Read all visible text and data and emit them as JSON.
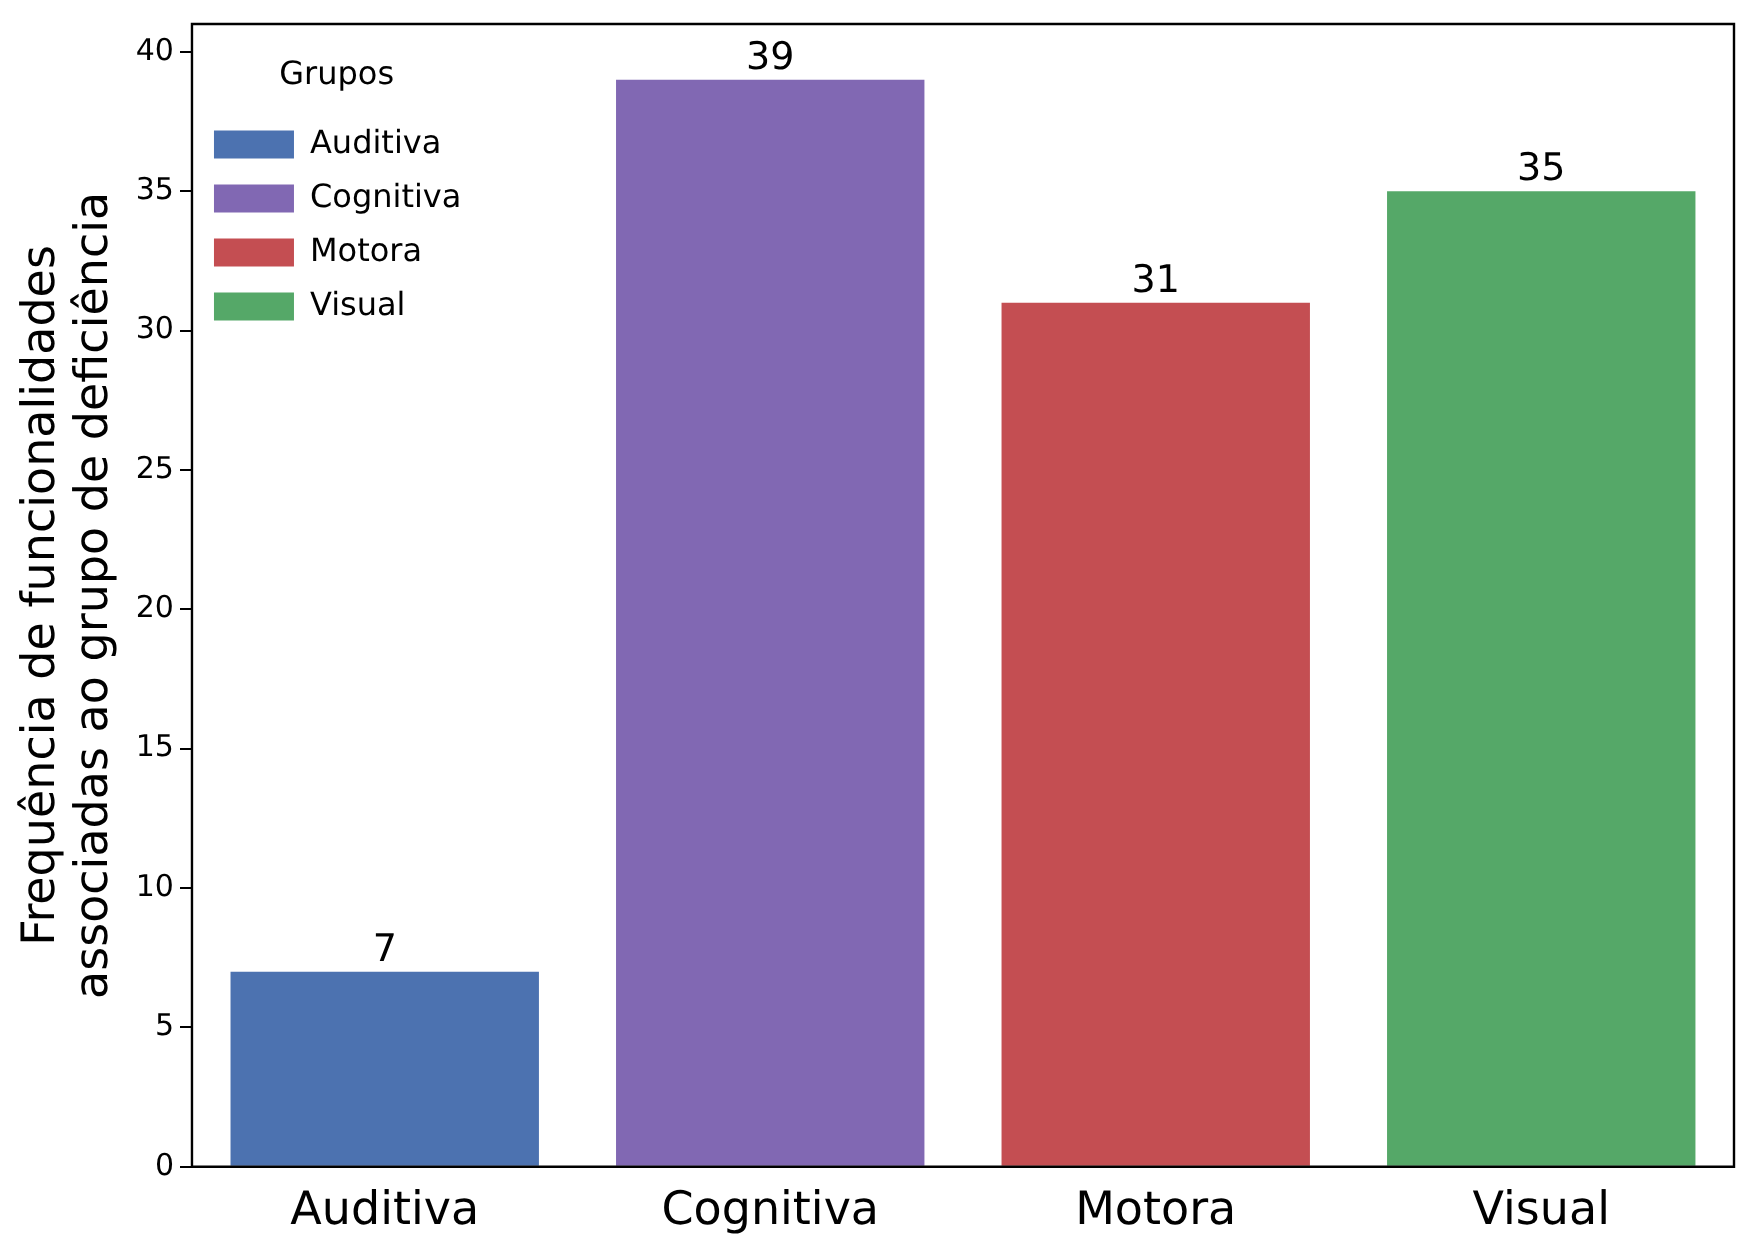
{
  "chart_data": {
    "type": "bar",
    "ylabel": "Frequência de funcionalidades\nassociadas ao grupo de deficiência",
    "legend_title": "Grupos",
    "categories": [
      "Auditiva",
      "Cognitiva",
      "Motora",
      "Visual"
    ],
    "series": [
      {
        "name": "Auditiva",
        "color": "#4c72b0",
        "values": [
          7,
          null,
          null,
          null
        ]
      },
      {
        "name": "Cognitiva",
        "color": "#8168b3",
        "values": [
          null,
          39,
          null,
          null
        ]
      },
      {
        "name": "Motora",
        "color": "#c44e52",
        "values": [
          null,
          null,
          31,
          null
        ]
      },
      {
        "name": "Visual",
        "color": "#55a868",
        "values": [
          null,
          null,
          null,
          35
        ]
      }
    ],
    "ylim": [
      0,
      41
    ],
    "yticks": [
      0,
      5,
      10,
      15,
      20,
      25,
      30,
      35,
      40
    ],
    "grid": false,
    "legend": "top left",
    "data_labels": true
  }
}
